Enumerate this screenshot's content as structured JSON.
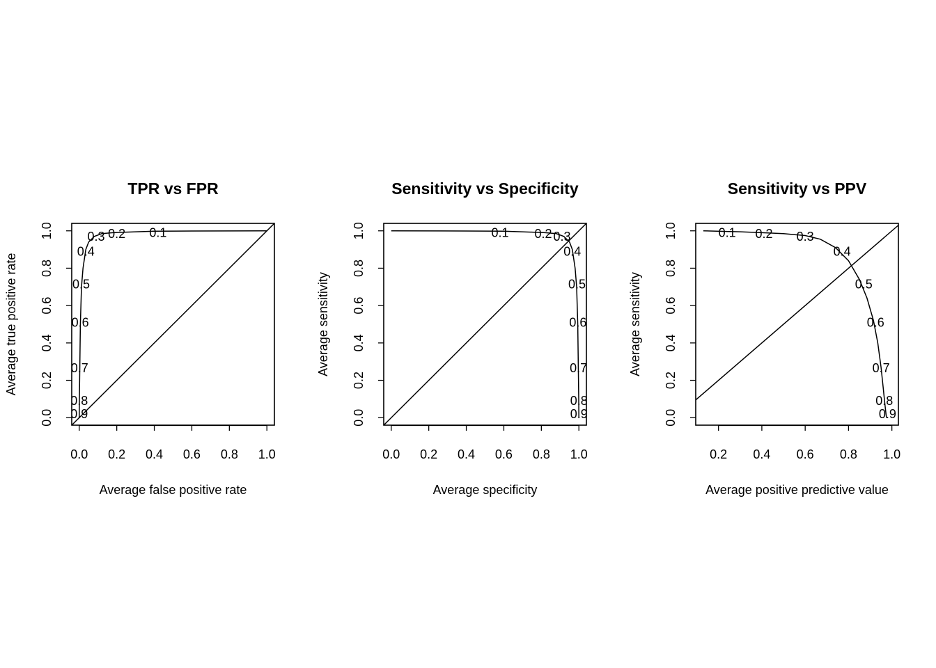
{
  "chart_data": [
    {
      "type": "line",
      "title": "TPR vs FPR",
      "xlabel": "Average false positive rate",
      "ylabel": "Average true positive rate",
      "xlim": [
        -0.04,
        1.04
      ],
      "ylim": [
        -0.04,
        1.04
      ],
      "xticks": [
        "0.0",
        "0.2",
        "0.4",
        "0.6",
        "0.8",
        "1.0"
      ],
      "yticks": [
        "0.0",
        "0.2",
        "0.4",
        "0.6",
        "0.8",
        "1.0"
      ],
      "diagonal": true,
      "curve": {
        "x": [
          1.0,
          0.6,
          0.4,
          0.25,
          0.18,
          0.12,
          0.08,
          0.05,
          0.035,
          0.02,
          0.012,
          0.006,
          0.003,
          0.001,
          0.0
        ],
        "y": [
          1.0,
          0.999,
          0.998,
          0.993,
          0.99,
          0.985,
          0.97,
          0.94,
          0.9,
          0.8,
          0.7,
          0.5,
          0.27,
          0.1,
          0.0
        ]
      },
      "cutoffs": [
        {
          "label": "0.1",
          "x": 0.42,
          "y": 0.99
        },
        {
          "label": "0.2",
          "x": 0.2,
          "y": 0.985
        },
        {
          "label": "0.3",
          "x": 0.09,
          "y": 0.97
        },
        {
          "label": "0.4",
          "x": 0.035,
          "y": 0.89
        },
        {
          "label": "0.5",
          "x": 0.01,
          "y": 0.715
        },
        {
          "label": "0.6",
          "x": 0.005,
          "y": 0.51
        },
        {
          "label": "0.7",
          "x": 0.002,
          "y": 0.265
        },
        {
          "label": "0.8",
          "x": 0.0,
          "y": 0.09
        },
        {
          "label": "0.9",
          "x": 0.0,
          "y": 0.02
        }
      ]
    },
    {
      "type": "line",
      "title": "Sensitivity vs Specificity",
      "xlabel": "Average specificity",
      "ylabel": "Average sensitivity",
      "xlim": [
        -0.04,
        1.04
      ],
      "ylim": [
        -0.04,
        1.04
      ],
      "xticks": [
        "0.0",
        "0.2",
        "0.4",
        "0.6",
        "0.8",
        "1.0"
      ],
      "yticks": [
        "0.0",
        "0.2",
        "0.4",
        "0.6",
        "0.8",
        "1.0"
      ],
      "diagonal": true,
      "curve": {
        "x": [
          0.0,
          0.4,
          0.6,
          0.75,
          0.82,
          0.88,
          0.92,
          0.95,
          0.965,
          0.98,
          0.988,
          0.994,
          0.997,
          0.999,
          1.0
        ],
        "y": [
          1.0,
          0.999,
          0.998,
          0.993,
          0.99,
          0.985,
          0.97,
          0.94,
          0.9,
          0.8,
          0.7,
          0.5,
          0.27,
          0.1,
          0.0
        ]
      },
      "cutoffs": [
        {
          "label": "0.1",
          "x": 0.58,
          "y": 0.99
        },
        {
          "label": "0.2",
          "x": 0.81,
          "y": 0.985
        },
        {
          "label": "0.3",
          "x": 0.91,
          "y": 0.97
        },
        {
          "label": "0.4",
          "x": 0.965,
          "y": 0.89
        },
        {
          "label": "0.5",
          "x": 0.99,
          "y": 0.715
        },
        {
          "label": "0.6",
          "x": 0.995,
          "y": 0.51
        },
        {
          "label": "0.7",
          "x": 0.998,
          "y": 0.265
        },
        {
          "label": "0.8",
          "x": 1.0,
          "y": 0.09
        },
        {
          "label": "0.9",
          "x": 1.0,
          "y": 0.02
        }
      ]
    },
    {
      "type": "line",
      "title": "Sensitivity vs PPV",
      "xlabel": "Average positive predictive value",
      "ylabel": "Average sensitivity",
      "xlim": [
        0.095,
        1.03
      ],
      "ylim": [
        -0.04,
        1.04
      ],
      "xticks": [
        "0.2",
        "0.4",
        "0.6",
        "0.8",
        "1.0"
      ],
      "yticks": [
        "0.0",
        "0.2",
        "0.4",
        "0.6",
        "0.8",
        "1.0"
      ],
      "diagonal": true,
      "curve": {
        "x": [
          0.13,
          0.22,
          0.3,
          0.4,
          0.5,
          0.6,
          0.67,
          0.74,
          0.8,
          0.85,
          0.885,
          0.915,
          0.935,
          0.95,
          0.96,
          0.967,
          0.972,
          0.975
        ],
        "y": [
          1.0,
          0.997,
          0.995,
          0.99,
          0.985,
          0.975,
          0.955,
          0.91,
          0.84,
          0.74,
          0.64,
          0.52,
          0.4,
          0.27,
          0.16,
          0.08,
          0.03,
          0.0
        ]
      },
      "cutoffs": [
        {
          "label": "0.1",
          "x": 0.24,
          "y": 0.99
        },
        {
          "label": "0.2",
          "x": 0.41,
          "y": 0.985
        },
        {
          "label": "0.3",
          "x": 0.6,
          "y": 0.97
        },
        {
          "label": "0.4",
          "x": 0.77,
          "y": 0.89
        },
        {
          "label": "0.5",
          "x": 0.87,
          "y": 0.715
        },
        {
          "label": "0.6",
          "x": 0.925,
          "y": 0.51
        },
        {
          "label": "0.7",
          "x": 0.95,
          "y": 0.265
        },
        {
          "label": "0.8",
          "x": 0.965,
          "y": 0.09
        },
        {
          "label": "0.9",
          "x": 0.98,
          "y": 0.02
        }
      ]
    }
  ]
}
